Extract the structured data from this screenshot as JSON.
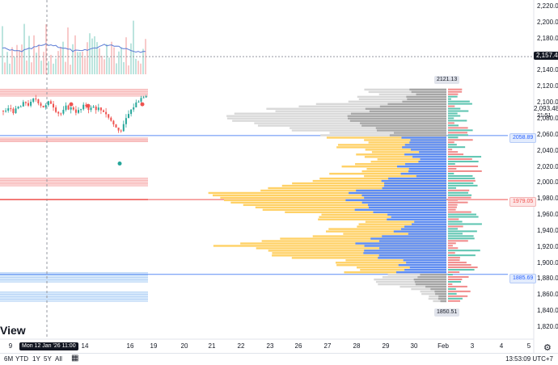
{
  "watermark": "View",
  "price_axis": {
    "ticks": [
      "2,220.00",
      "2,200.00",
      "2,180.00",
      "2,160.00",
      "2,140.00",
      "2,120.00",
      "2,100.00",
      "2,080.00",
      "2,060.00",
      "2,040.00",
      "2,020.00",
      "2,000.00",
      "1,980.00",
      "1,960.00",
      "1,940.00",
      "1,920.00",
      "1,900.00",
      "1,880.00",
      "1,860.00",
      "1,840.00",
      "1,820.00"
    ],
    "tick_values": [
      2220,
      2200,
      2180,
      2160,
      2140,
      2120,
      2100,
      2080,
      2060,
      2040,
      2020,
      2000,
      1980,
      1960,
      1940,
      1920,
      1900,
      1880,
      1860,
      1840,
      1820
    ],
    "last_price": "2,157.46",
    "last_price_value": 2157.46,
    "current": "2,093.48",
    "countdown": "21:51"
  },
  "markers": {
    "top": "2121.13",
    "bottom": "1850.51",
    "blue_high": "2058.89",
    "red": "1979.05",
    "blue_low": "1885.69"
  },
  "time_axis": {
    "labels": [
      "9",
      "14",
      "16",
      "19",
      "20",
      "21",
      "22",
      "23",
      "26",
      "27",
      "28",
      "29",
      "30",
      "Feb",
      "3",
      "4",
      "5"
    ],
    "crosshair_label": "Mon 12 Jan '26  11:00"
  },
  "bottom_bar": {
    "ranges": [
      "6M",
      "YTD",
      "1Y",
      "5Y",
      "All"
    ],
    "time": "13:53:09 UTC+7"
  },
  "colors": {
    "up": "#26a69a",
    "down": "#ef5350",
    "vp_gray": "#a6a6a6",
    "vp_gray_light": "#d9d9d9",
    "vp_yellow": "#ffd166",
    "vp_blue": "#5b8bf5",
    "vp_green": "#5cc4b0",
    "vp_red": "#f08a8a",
    "accent": "#2962ff"
  }
}
